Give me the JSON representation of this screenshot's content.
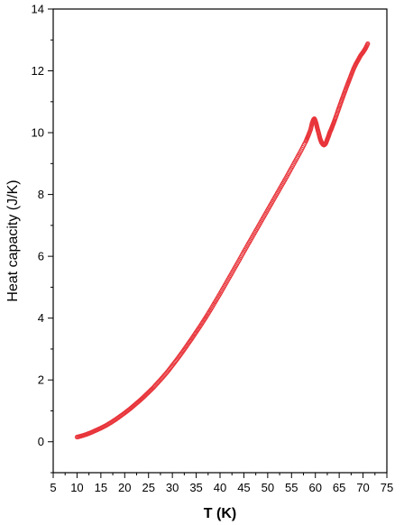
{
  "chart_data": {
    "type": "scatter",
    "xlabel": "T (K)",
    "ylabel": "Heat capacity (J/K)",
    "xlim": [
      5,
      75
    ],
    "ylim": [
      -1,
      14
    ],
    "x_ticks": [
      5,
      10,
      15,
      20,
      25,
      30,
      35,
      40,
      45,
      50,
      55,
      60,
      65,
      70,
      75
    ],
    "y_ticks": [
      0,
      2,
      4,
      6,
      8,
      10,
      12,
      14
    ],
    "grid": false,
    "legend": "none",
    "marker": "open-circle",
    "colors": {
      "series": "#e8353b",
      "axis": "#000000"
    },
    "series": [
      {
        "x": [
          10,
          11,
          12,
          13,
          14,
          15,
          16,
          17,
          18,
          19,
          20,
          21,
          22,
          23,
          24,
          25,
          26,
          27,
          28,
          29,
          30,
          31,
          32,
          33,
          34,
          35,
          36,
          37,
          38,
          39,
          40,
          41,
          42,
          43,
          44,
          45,
          46,
          47,
          48,
          49,
          50,
          51,
          52,
          53,
          54,
          55,
          56,
          57,
          58,
          58.5,
          59,
          59.3,
          59.6,
          59.8,
          60.0,
          60.2,
          60.4,
          60.7,
          61.0,
          61.3,
          61.6,
          61.8,
          62.0,
          62.2,
          62.5,
          62.8,
          63.0,
          63.3,
          63.6,
          64,
          64.5,
          65,
          65.5,
          66,
          66.5,
          67,
          67.5,
          68,
          68.5,
          69,
          69.5,
          70,
          70.5,
          71
        ],
        "y": [
          0.15,
          0.19,
          0.24,
          0.3,
          0.37,
          0.44,
          0.52,
          0.61,
          0.71,
          0.82,
          0.93,
          1.05,
          1.18,
          1.31,
          1.45,
          1.6,
          1.75,
          1.92,
          2.09,
          2.27,
          2.47,
          2.67,
          2.88,
          3.1,
          3.32,
          3.55,
          3.78,
          4.02,
          4.27,
          4.53,
          4.79,
          5.06,
          5.33,
          5.6,
          5.87,
          6.15,
          6.42,
          6.69,
          6.96,
          7.23,
          7.5,
          7.77,
          8.04,
          8.31,
          8.58,
          8.86,
          9.14,
          9.42,
          9.72,
          9.9,
          10.1,
          10.3,
          10.42,
          10.45,
          10.38,
          10.28,
          10.15,
          9.98,
          9.8,
          9.68,
          9.62,
          9.6,
          9.62,
          9.66,
          9.78,
          9.9,
          10.0,
          10.1,
          10.22,
          10.38,
          10.6,
          10.82,
          11.04,
          11.25,
          11.46,
          11.66,
          11.86,
          12.06,
          12.22,
          12.36,
          12.5,
          12.6,
          12.72,
          12.88
        ]
      }
    ]
  }
}
